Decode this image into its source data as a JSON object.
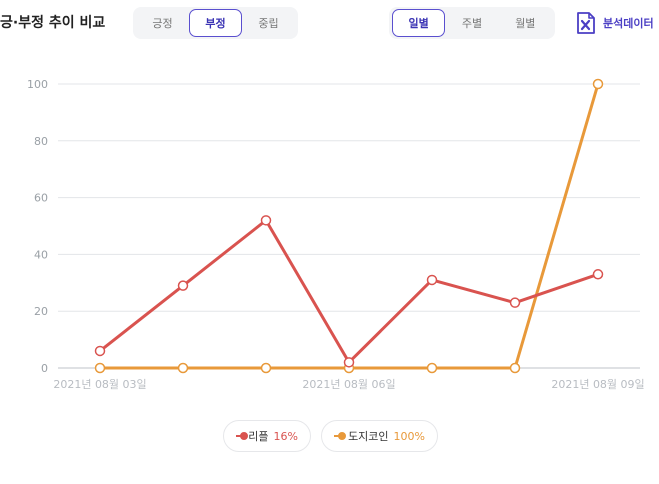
{
  "header": {
    "title": "긍·부정 추이 비교",
    "sentiment_tabs": [
      {
        "label": "긍정",
        "active": false
      },
      {
        "label": "부정",
        "active": true
      },
      {
        "label": "중립",
        "active": false
      }
    ],
    "period_tabs": [
      {
        "label": "일별",
        "active": true
      },
      {
        "label": "주별",
        "active": false
      },
      {
        "label": "월별",
        "active": false
      }
    ],
    "export_label": "분석데이터",
    "export_icon": "excel-icon"
  },
  "colors": {
    "accent": "#4b3fc4",
    "series1": "#d9534f",
    "series2": "#e8993a"
  },
  "chart_data": {
    "type": "line",
    "x": [
      "2021-08-03",
      "2021-08-04",
      "2021-08-05",
      "2021-08-06",
      "2021-08-07",
      "2021-08-08",
      "2021-08-09"
    ],
    "x_tick_labels": [
      {
        "index": 0,
        "label": "2021년 08월 03일"
      },
      {
        "index": 3,
        "label": "2021년 08월 06일"
      },
      {
        "index": 6,
        "label": "2021년 08월 09일"
      }
    ],
    "yticks": [
      0,
      20,
      40,
      60,
      80,
      100
    ],
    "ylim": [
      0,
      100
    ],
    "grid": true,
    "legend_position": "bottom-center",
    "series": [
      {
        "name": "리플",
        "percent": "16%",
        "color": "#d9534f",
        "values": [
          6,
          29,
          52,
          2,
          31,
          23,
          33
        ]
      },
      {
        "name": "도지코인",
        "percent": "100%",
        "color": "#e8993a",
        "values": [
          0,
          0,
          0,
          0,
          0,
          0,
          100
        ]
      }
    ]
  }
}
